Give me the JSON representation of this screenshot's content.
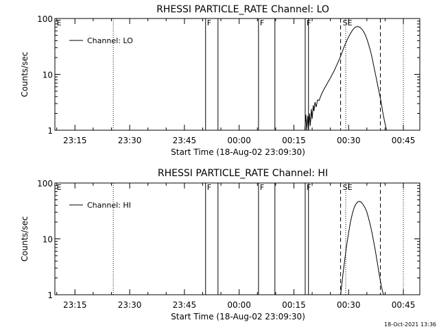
{
  "chart_data": [
    {
      "type": "line",
      "title": "RHESSI PARTICLE_RATE Channel: LO",
      "xlabel": "Start Time (18-Aug-02 23:09:30)",
      "ylabel": "Counts/sec",
      "yscale": "log",
      "ylim": [
        1,
        100
      ],
      "xlim_minutes": [
        0,
        100
      ],
      "x_ticks": [
        {
          "label": "23:15",
          "m": 5.5
        },
        {
          "label": "23:30",
          "m": 20.5
        },
        {
          "label": "23:45",
          "m": 35.5
        },
        {
          "label": "00:00",
          "m": 50.5
        },
        {
          "label": "00:15",
          "m": 65.5
        },
        {
          "label": "00:30",
          "m": 80.5
        },
        {
          "label": "00:45",
          "m": 95.5
        }
      ],
      "y_ticks": [
        {
          "label": "1",
          "v": 1
        },
        {
          "label": "10",
          "v": 10
        },
        {
          "label": "100",
          "v": 100
        }
      ],
      "legend": {
        "entries": [
          "Channel: LO"
        ],
        "position": "top-left"
      },
      "grid": false,
      "flags": [
        {
          "label": "E",
          "m": 0.3
        },
        {
          "label": "F",
          "m": 41.5
        },
        {
          "label": "F",
          "m": 56.0
        },
        {
          "label": "F",
          "m": 68.8
        },
        {
          "label": "S",
          "m": 78.7
        },
        {
          "label": "E",
          "m": 80.0
        }
      ],
      "solid_lines_m": [
        41.3,
        44.7,
        55.8,
        60.3,
        68.6,
        69.5
      ],
      "dashed_lines_m": [
        78.3,
        89.2
      ],
      "dotted_lines_m": [
        16.0,
        79.7,
        95.5
      ],
      "series": [
        {
          "name": "Channel: LO",
          "x_minutes": [
            68.5,
            68.8,
            69.0,
            69.3,
            69.5,
            69.8,
            70.0,
            70.3,
            70.5,
            70.8,
            71.0,
            71.3,
            71.6,
            72.0,
            72.4,
            72.8,
            73.2,
            73.6,
            74.0,
            74.5,
            75.0,
            75.5,
            76.0,
            76.5,
            77.0,
            77.5,
            78.0,
            78.5,
            79.0,
            79.5,
            80.0,
            80.5,
            81.0,
            81.5,
            82.0,
            82.5,
            83.0,
            83.5,
            84.0,
            84.5,
            85.0,
            85.5,
            86.0,
            86.5,
            87.0,
            87.5,
            88.0,
            88.5,
            89.0,
            89.5,
            89.8,
            90.2,
            90.6,
            90.8,
            91.0
          ],
          "values": [
            1.0,
            1.9,
            1.0,
            1.8,
            1.0,
            2.0,
            1.2,
            2.4,
            1.6,
            2.8,
            2.2,
            3.2,
            2.6,
            3.5,
            3.4,
            4.0,
            4.6,
            5.2,
            5.8,
            6.6,
            7.6,
            8.6,
            10.0,
            11.5,
            13.5,
            16.0,
            19.0,
            23.0,
            28.0,
            34.0,
            40.0,
            47.0,
            54.0,
            61.0,
            67.0,
            71.0,
            72.0,
            70.0,
            66.0,
            60.0,
            52.0,
            43.0,
            34.0,
            26.0,
            19.0,
            13.0,
            9.0,
            6.2,
            4.3,
            3.0,
            2.2,
            1.6,
            1.2,
            1.05,
            1.0
          ]
        }
      ]
    },
    {
      "type": "line",
      "title": "RHESSI PARTICLE_RATE Channel: HI",
      "xlabel": "Start Time (18-Aug-02 23:09:30)",
      "ylabel": "Counts/sec",
      "yscale": "log",
      "ylim": [
        1,
        100
      ],
      "xlim_minutes": [
        0,
        100
      ],
      "x_ticks": [
        {
          "label": "23:15",
          "m": 5.5
        },
        {
          "label": "23:30",
          "m": 20.5
        },
        {
          "label": "23:45",
          "m": 35.5
        },
        {
          "label": "00:00",
          "m": 50.5
        },
        {
          "label": "00:15",
          "m": 65.5
        },
        {
          "label": "00:30",
          "m": 80.5
        },
        {
          "label": "00:45",
          "m": 95.5
        }
      ],
      "y_ticks": [
        {
          "label": "1",
          "v": 1
        },
        {
          "label": "10",
          "v": 10
        },
        {
          "label": "100",
          "v": 100
        }
      ],
      "legend": {
        "entries": [
          "Channel: HI"
        ],
        "position": "top-left"
      },
      "grid": false,
      "flags": [
        {
          "label": "E",
          "m": 0.3
        },
        {
          "label": "F",
          "m": 41.5
        },
        {
          "label": "F",
          "m": 56.0
        },
        {
          "label": "F",
          "m": 68.8
        },
        {
          "label": "S",
          "m": 78.7
        },
        {
          "label": "E",
          "m": 80.0
        }
      ],
      "solid_lines_m": [
        41.3,
        44.7,
        55.8,
        60.3,
        68.6,
        69.5
      ],
      "dashed_lines_m": [
        78.3,
        89.2
      ],
      "dotted_lines_m": [
        16.0,
        79.7,
        95.5
      ],
      "series": [
        {
          "name": "Channel: HI",
          "x_minutes": [
            78.3,
            78.6,
            79.0,
            79.5,
            80.0,
            80.5,
            81.0,
            81.5,
            82.0,
            82.5,
            83.0,
            83.5,
            84.0,
            84.5,
            85.0,
            85.5,
            86.0,
            86.5,
            87.0,
            87.5,
            88.0,
            88.5,
            89.0,
            89.5,
            89.8,
            90.1
          ],
          "values": [
            1.0,
            1.5,
            2.5,
            4.5,
            8.0,
            13.0,
            20.0,
            28.0,
            36.0,
            42.0,
            46.0,
            47.0,
            45.0,
            41.0,
            36.0,
            30.0,
            23.0,
            17.0,
            12.0,
            8.0,
            5.2,
            3.3,
            2.1,
            1.4,
            1.15,
            1.0
          ]
        }
      ]
    }
  ],
  "footer": {
    "timestamp": "18-Oct-2021 13:36"
  }
}
